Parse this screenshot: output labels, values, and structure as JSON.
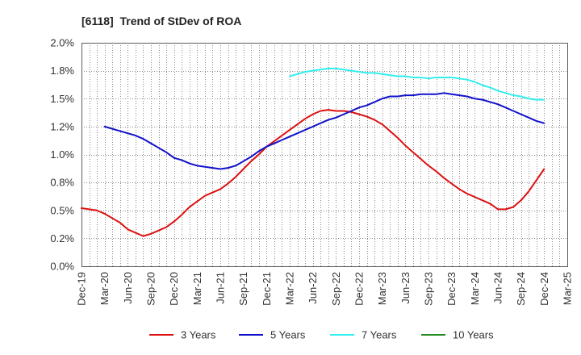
{
  "chart_data": {
    "type": "line",
    "title": "[6118]  Trend of StDev of ROA",
    "xlabel": "",
    "ylabel": "",
    "x_ticks": [
      "Dec-19",
      "Mar-20",
      "Jun-20",
      "Sep-20",
      "Dec-20",
      "Mar-21",
      "Jun-21",
      "Sep-21",
      "Dec-21",
      "Mar-22",
      "Jun-22",
      "Sep-22",
      "Dec-22",
      "Mar-23",
      "Jun-23",
      "Sep-23",
      "Dec-23",
      "Mar-24",
      "Jun-24",
      "Sep-24",
      "Dec-24",
      "Mar-25"
    ],
    "months_per_tick": 3,
    "ylim": [
      0,
      2.0
    ],
    "y_ticks": [
      0,
      0.25,
      0.5,
      0.75,
      1.0,
      1.25,
      1.5,
      1.75,
      2.0
    ],
    "y_tick_labels": [
      "0.0%",
      "0.2%",
      "0.5%",
      "0.8%",
      "1.0%",
      "1.2%",
      "1.5%",
      "1.8%",
      "2.0%"
    ],
    "grid": true,
    "legend_position": "bottom",
    "series": [
      {
        "name": "3 Years",
        "color": "#dd1111",
        "start_month": 0,
        "values": [
          0.52,
          0.51,
          0.5,
          0.47,
          0.43,
          0.39,
          0.33,
          0.3,
          0.27,
          0.29,
          0.32,
          0.35,
          0.4,
          0.46,
          0.53,
          0.58,
          0.63,
          0.66,
          0.69,
          0.74,
          0.8,
          0.87,
          0.94,
          1.0,
          1.07,
          1.12,
          1.17,
          1.22,
          1.27,
          1.32,
          1.36,
          1.39,
          1.4,
          1.39,
          1.39,
          1.38,
          1.36,
          1.34,
          1.31,
          1.27,
          1.21,
          1.15,
          1.08,
          1.02,
          0.96,
          0.9,
          0.85,
          0.79,
          0.74,
          0.69,
          0.65,
          0.62,
          0.59,
          0.56,
          0.51,
          0.51,
          0.53,
          0.59,
          0.67,
          0.77,
          0.87
        ]
      },
      {
        "name": "5 Years",
        "color": "#1111cc",
        "start_month": 3,
        "values": [
          1.25,
          1.23,
          1.21,
          1.19,
          1.17,
          1.14,
          1.1,
          1.06,
          1.02,
          0.97,
          0.95,
          0.92,
          0.9,
          0.89,
          0.88,
          0.87,
          0.88,
          0.9,
          0.94,
          0.98,
          1.03,
          1.07,
          1.1,
          1.13,
          1.16,
          1.19,
          1.22,
          1.25,
          1.28,
          1.31,
          1.33,
          1.36,
          1.39,
          1.42,
          1.44,
          1.47,
          1.5,
          1.52,
          1.52,
          1.53,
          1.53,
          1.54,
          1.54,
          1.54,
          1.55,
          1.54,
          1.53,
          1.52,
          1.5,
          1.49,
          1.47,
          1.45,
          1.42,
          1.39,
          1.36,
          1.33,
          1.3,
          1.28
        ]
      },
      {
        "name": "7 Years",
        "color": "#33eeee",
        "start_month": 27,
        "values": [
          1.7,
          1.72,
          1.74,
          1.75,
          1.76,
          1.77,
          1.77,
          1.76,
          1.75,
          1.74,
          1.73,
          1.73,
          1.72,
          1.71,
          1.7,
          1.7,
          1.69,
          1.69,
          1.68,
          1.69,
          1.69,
          1.69,
          1.68,
          1.67,
          1.65,
          1.62,
          1.6,
          1.57,
          1.55,
          1.53,
          1.52,
          1.5,
          1.49,
          1.49
        ]
      },
      {
        "name": "10 Years",
        "color": "#228b22",
        "start_month": null,
        "values": []
      }
    ]
  }
}
